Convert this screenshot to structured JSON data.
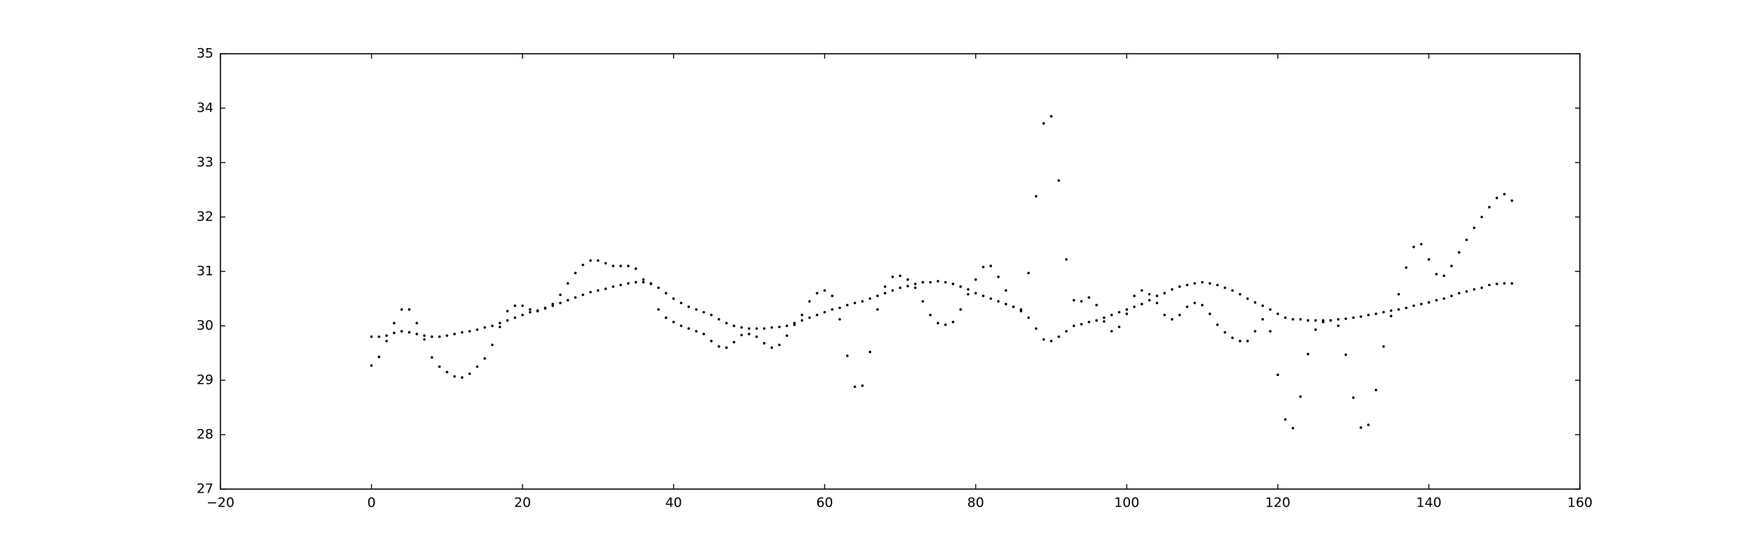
{
  "chart_data": {
    "type": "scatter",
    "x": [
      0,
      1,
      2,
      3,
      4,
      5,
      6,
      7,
      8,
      9,
      10,
      11,
      12,
      13,
      14,
      15,
      16,
      17,
      18,
      19,
      20,
      21,
      22,
      23,
      24,
      25,
      26,
      27,
      28,
      29,
      30,
      31,
      32,
      33,
      34,
      35,
      36,
      37,
      38,
      39,
      40,
      41,
      42,
      43,
      44,
      45,
      46,
      47,
      48,
      49,
      50,
      51,
      52,
      53,
      54,
      55,
      56,
      57,
      58,
      59,
      60,
      61,
      62,
      63,
      64,
      65,
      66,
      67,
      68,
      69,
      70,
      71,
      72,
      73,
      74,
      75,
      76,
      77,
      78,
      79,
      80,
      81,
      82,
      83,
      84,
      85,
      86,
      87,
      88,
      89,
      90,
      91,
      92,
      93,
      94,
      95,
      96,
      97,
      98,
      99,
      100,
      101,
      102,
      103,
      104,
      105,
      106,
      107,
      108,
      109,
      110,
      111,
      112,
      113,
      114,
      115,
      116,
      117,
      118,
      119,
      120,
      121,
      122,
      123,
      124,
      125,
      126,
      127,
      128,
      129,
      130,
      131,
      132,
      133,
      134,
      135,
      136,
      137,
      138,
      139,
      140,
      141,
      142,
      143,
      144,
      145,
      146,
      147,
      148,
      149,
      150,
      151
    ],
    "series": [
      {
        "color": "#000000",
        "values": [
          29.8,
          29.8,
          29.82,
          29.87,
          29.9,
          29.88,
          29.85,
          29.82,
          29.8,
          29.8,
          29.82,
          29.85,
          29.88,
          29.9,
          29.93,
          29.97,
          30.0,
          30.05,
          30.1,
          30.15,
          30.2,
          30.25,
          30.28,
          30.32,
          30.37,
          30.42,
          30.47,
          30.52,
          30.57,
          30.62,
          30.65,
          30.68,
          30.72,
          30.75,
          30.78,
          30.8,
          30.8,
          30.77,
          30.7,
          30.6,
          30.5,
          30.42,
          30.35,
          30.3,
          30.25,
          30.2,
          30.12,
          30.05,
          30.0,
          29.97,
          29.95,
          29.95,
          29.95,
          29.97,
          29.98,
          30.0,
          30.05,
          30.1,
          30.15,
          30.2,
          30.25,
          30.3,
          30.33,
          30.38,
          30.42,
          30.45,
          30.5,
          30.55,
          30.6,
          30.65,
          30.7,
          30.73,
          30.77,
          30.8,
          30.8,
          30.82,
          30.8,
          30.77,
          30.72,
          30.67,
          30.6,
          30.55,
          30.5,
          30.45,
          30.4,
          30.35,
          30.3,
          30.15,
          29.95,
          29.75,
          29.72,
          29.8,
          29.9,
          30.0,
          30.03,
          30.07,
          30.1,
          30.15,
          30.2,
          30.25,
          30.3,
          30.35,
          30.4,
          30.47,
          30.55,
          30.6,
          30.67,
          30.72,
          30.75,
          30.78,
          30.8,
          30.78,
          30.75,
          30.7,
          30.65,
          30.58,
          30.5,
          30.43,
          30.37,
          30.3,
          30.22,
          30.15,
          30.12,
          30.12,
          30.1,
          30.1,
          30.1,
          30.1,
          30.12,
          30.13,
          30.15,
          30.17,
          30.2,
          30.22,
          30.25,
          30.28,
          30.3,
          30.33,
          30.37,
          30.4,
          30.43,
          30.47,
          30.5,
          30.55,
          30.6,
          30.63,
          30.67,
          30.7,
          30.75,
          30.77,
          30.78,
          30.78
        ]
      },
      {
        "color": "#000000",
        "values": [
          29.27,
          29.43,
          29.72,
          30.05,
          30.3,
          30.3,
          30.05,
          29.75,
          29.42,
          29.25,
          29.15,
          29.07,
          29.05,
          29.12,
          29.25,
          29.4,
          29.65,
          29.98,
          30.27,
          30.37,
          30.37,
          30.3,
          30.27,
          30.33,
          30.4,
          30.57,
          30.78,
          30.97,
          31.12,
          31.2,
          31.2,
          31.15,
          31.1,
          31.1,
          31.1,
          31.05,
          30.85,
          30.78,
          30.3,
          30.15,
          30.07,
          30.0,
          29.95,
          29.9,
          29.85,
          29.72,
          29.62,
          29.6,
          29.7,
          29.83,
          29.85,
          29.8,
          29.68,
          29.6,
          29.65,
          29.82,
          30.02,
          30.2,
          30.45,
          30.6,
          30.65,
          30.55,
          30.12,
          29.45,
          28.88,
          28.9,
          29.52,
          30.3,
          30.72,
          30.9,
          30.92,
          30.85,
          30.7,
          30.45,
          30.2,
          30.05,
          30.02,
          30.07,
          30.3,
          30.58,
          30.85,
          31.08,
          31.1,
          30.9,
          30.65,
          30.35,
          30.27,
          30.97,
          32.38,
          33.72,
          33.85,
          32.67,
          31.22,
          30.47,
          30.45,
          30.52,
          30.38,
          30.08,
          29.9,
          29.98,
          30.22,
          30.55,
          30.65,
          30.58,
          30.42,
          30.2,
          30.12,
          30.2,
          30.35,
          30.42,
          30.38,
          30.22,
          30.02,
          29.88,
          29.78,
          29.72,
          29.72,
          29.9,
          30.12,
          29.9,
          29.1,
          28.28,
          28.12,
          28.7,
          29.48,
          29.93,
          30.07,
          30.1,
          30.0,
          29.47,
          28.68,
          28.13,
          28.18,
          28.82,
          29.62,
          30.18,
          30.58,
          31.07,
          31.45,
          31.5,
          31.22,
          30.95,
          30.92,
          31.1,
          31.35,
          31.58,
          31.8,
          32.0,
          32.18,
          32.35,
          32.42,
          32.3
        ]
      }
    ],
    "xlim": [
      -20,
      160
    ],
    "xticks": [
      {
        "value": -20,
        "label": "−20"
      },
      0,
      20,
      40,
      60,
      80,
      100,
      120,
      140,
      160
    ],
    "ylim": [
      27,
      35
    ],
    "yticks": [
      27,
      28,
      29,
      30,
      31,
      32,
      33,
      34,
      35
    ]
  }
}
